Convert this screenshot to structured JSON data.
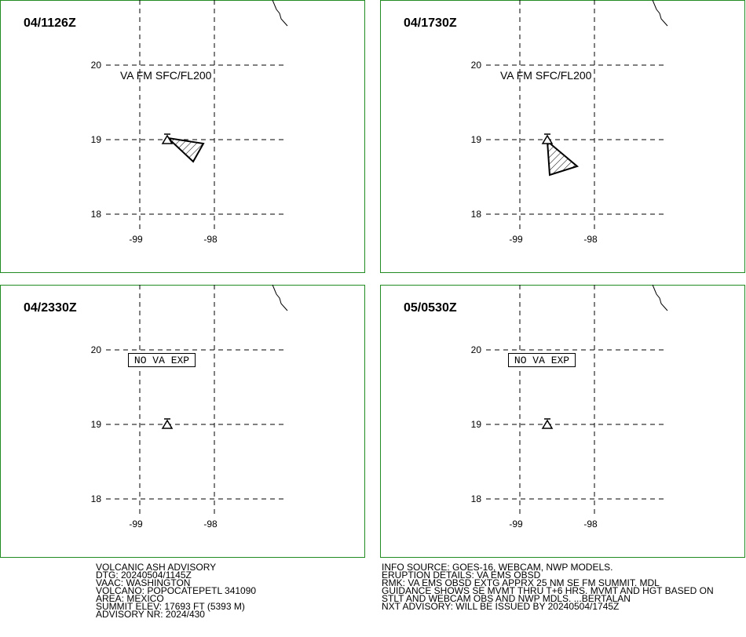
{
  "grid": {
    "lat_labels": [
      "20",
      "19",
      "18"
    ],
    "lon_labels": [
      "-99",
      "-98"
    ]
  },
  "panels": [
    {
      "time": "04/1126Z",
      "annotation": "VA FM SFC/FL200",
      "boxed": false
    },
    {
      "time": "04/1730Z",
      "annotation": "VA FM SFC/FL200",
      "boxed": false
    },
    {
      "time": "04/2330Z",
      "annotation": "NO VA EXP",
      "boxed": true
    },
    {
      "time": "05/0530Z",
      "annotation": "NO VA EXP",
      "boxed": true
    }
  ],
  "advisory_left": [
    "VOLCANIC ASH ADVISORY",
    "DTG: 20240504/1145Z",
    "VAAC: WASHINGTON",
    "VOLCANO: POPOCATEPETL 341090",
    "AREA: MEXICO",
    "SUMMIT ELEV: 17693 FT (5393 M)",
    "ADVISORY NR: 2024/430"
  ],
  "advisory_right": [
    "INFO SOURCE: GOES-16, WEBCAM, NWP MODELS.",
    "ERUPTION DETAILS: VA EMS OBSD",
    "RMK: VA EMS OBSD EXTG APPRX 25 NM SE FM SUMMIT. MDL",
    "GUIDANCE SHOWS SE MVMT THRU T+6 HRS. MVMT AND HGT BASED ON",
    "STLT AND WEBCAM OBS AND NWP MDLS. ...BERTALAN",
    "NXT ADVISORY: WILL BE ISSUED BY 20240504/1745Z"
  ]
}
